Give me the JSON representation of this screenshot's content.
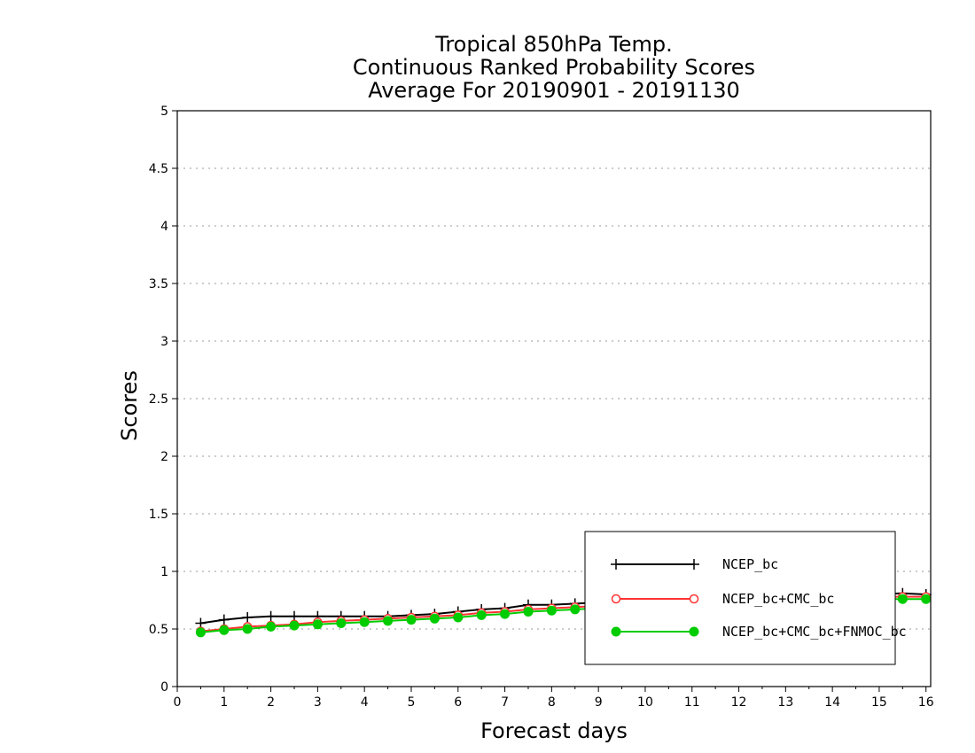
{
  "chart_data": {
    "type": "line",
    "title": [
      "Tropical 850hPa Temp.",
      "Continuous Ranked Probability Scores",
      "Average For 20190901 - 20191130"
    ],
    "xlabel": "Forecast days",
    "ylabel": "Scores",
    "xlim": [
      0,
      16.1
    ],
    "ylim": [
      0,
      5
    ],
    "xticks": [
      "0",
      "1",
      "2",
      "3",
      "4",
      "5",
      "6",
      "7",
      "8",
      "9",
      "10",
      "11",
      "12",
      "13",
      "14",
      "15",
      "16"
    ],
    "yticks": [
      "0",
      "0.5",
      "1",
      "1.5",
      "2",
      "2.5",
      "3",
      "3.5",
      "4",
      "4.5",
      "5"
    ],
    "grid": true,
    "legend_position": "bottom-right",
    "series": [
      {
        "name": "NCEP_bc",
        "color": "#000000",
        "marker": "plus",
        "x": [
          0.5,
          1,
          1.5,
          2,
          2.5,
          3,
          3.5,
          4,
          4.5,
          5,
          5.5,
          6,
          6.5,
          7,
          7.5,
          8,
          8.5,
          9,
          9.5,
          10,
          10.5,
          11,
          11.5,
          12,
          12.5,
          13,
          13.5,
          14,
          14.5,
          15,
          15.5,
          16
        ],
        "values": [
          0.55,
          0.58,
          0.6,
          0.61,
          0.61,
          0.61,
          0.61,
          0.61,
          0.61,
          0.62,
          0.63,
          0.65,
          0.67,
          0.68,
          0.71,
          0.71,
          0.72,
          0.73,
          0.74,
          0.75,
          0.76,
          0.77,
          0.77,
          0.78,
          0.78,
          0.79,
          0.79,
          0.8,
          0.8,
          0.8,
          0.81,
          0.8
        ]
      },
      {
        "name": "NCEP_bc+CMC_bc",
        "color": "#ff3333",
        "marker": "open-circle",
        "x": [
          0.5,
          1,
          1.5,
          2,
          2.5,
          3,
          3.5,
          4,
          4.5,
          5,
          5.5,
          6,
          6.5,
          7,
          7.5,
          8,
          8.5,
          9,
          9.5,
          10,
          10.5,
          11,
          11.5,
          12,
          12.5,
          13,
          13.5,
          14,
          14.5,
          15,
          15.5,
          16
        ],
        "values": [
          0.48,
          0.5,
          0.52,
          0.53,
          0.54,
          0.56,
          0.57,
          0.58,
          0.59,
          0.6,
          0.61,
          0.62,
          0.64,
          0.65,
          0.67,
          0.68,
          0.69,
          0.7,
          0.71,
          0.72,
          0.73,
          0.74,
          0.74,
          0.75,
          0.75,
          0.76,
          0.76,
          0.77,
          0.77,
          0.78,
          0.78,
          0.78
        ]
      },
      {
        "name": "NCEP_bc+CMC_bc+FNMOC_bc",
        "color": "#00cc00",
        "marker": "filled-circle",
        "x": [
          0.5,
          1,
          1.5,
          2,
          2.5,
          3,
          3.5,
          4,
          4.5,
          5,
          5.5,
          6,
          6.5,
          7,
          7.5,
          8,
          8.5,
          9,
          9.5,
          10,
          10.5,
          11,
          11.5,
          12,
          12.5,
          13,
          13.5,
          14,
          14.5,
          15,
          15.5,
          16
        ],
        "values": [
          0.47,
          0.49,
          0.5,
          0.52,
          0.53,
          0.54,
          0.55,
          0.56,
          0.57,
          0.58,
          0.59,
          0.6,
          0.62,
          0.63,
          0.65,
          0.66,
          0.67,
          0.68,
          0.69,
          0.7,
          0.71,
          0.72,
          0.73,
          0.73,
          0.74,
          0.74,
          0.75,
          0.75,
          0.76,
          0.76,
          0.76,
          0.76
        ]
      }
    ]
  }
}
